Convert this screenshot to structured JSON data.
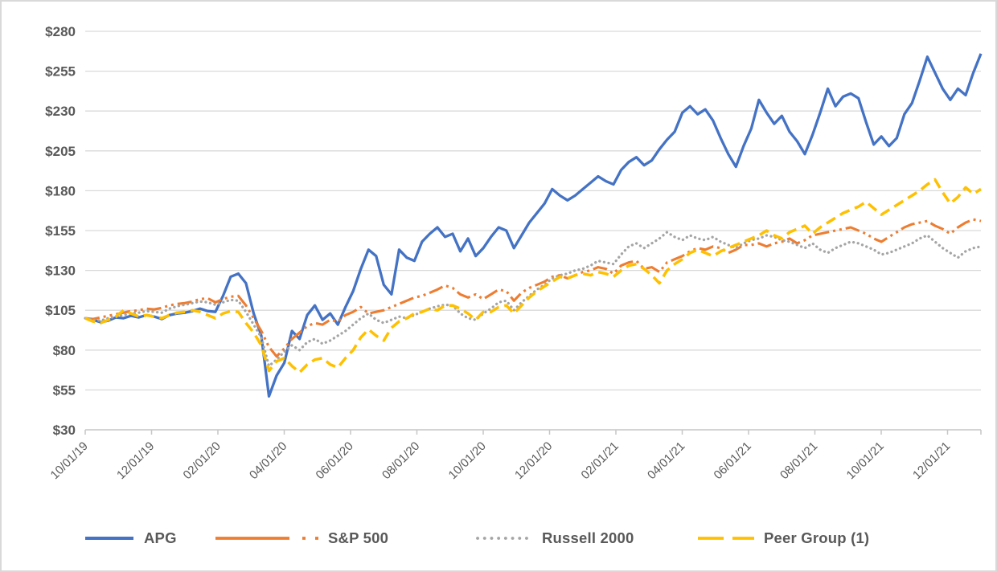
{
  "colors": {
    "apg_blue": "#4472C4",
    "sp500_orange": "#ED7D31",
    "russell_gray": "#A5A5A5",
    "peer_gold": "#FFC000",
    "axis_text": "#595959",
    "gridline": "#D9D9D9",
    "axis_line": "#C6C6C6",
    "frame_border": "#D9D9D9",
    "background": "#FFFFFF"
  },
  "chart_data": {
    "type": "line",
    "title": "",
    "grid": true,
    "legend_position": "bottom",
    "sampling": "weekly points from 10/01/19 through 12/31/21, values indexed to $100",
    "y_axis": {
      "min": 30,
      "max": 280,
      "tick_values": [
        30,
        55,
        80,
        105,
        130,
        155,
        180,
        205,
        230,
        255,
        280
      ],
      "tick_labels": [
        "$30",
        "$55",
        "$80",
        "$105",
        "$130",
        "$155",
        "$180",
        "$205",
        "$230",
        "$255",
        "$280"
      ]
    },
    "x_axis": {
      "tick_labels": [
        "10/01/19",
        "12/01/19",
        "02/01/20",
        "04/01/20",
        "06/01/20",
        "08/01/20",
        "10/01/20",
        "12/01/20",
        "02/01/21",
        "04/01/21",
        "06/01/21",
        "08/01/21",
        "10/01/21",
        "12/01/21"
      ]
    },
    "series": [
      {
        "name": "APG",
        "color": "#4472C4",
        "line_style": "solid",
        "values": [
          100,
          99,
          97.5,
          98.5,
          100.5,
          100,
          101.5,
          100.5,
          102,
          101,
          99.5,
          102,
          103,
          103.5,
          104.5,
          106,
          104.5,
          104,
          114,
          126,
          128,
          122,
          103,
          89,
          51,
          64,
          72,
          92,
          87,
          102,
          108,
          99,
          103,
          96,
          107,
          117,
          131,
          143,
          139,
          121,
          115,
          143,
          138,
          136,
          148,
          153,
          157,
          151,
          153,
          142,
          150,
          139,
          144,
          151,
          157,
          155,
          144,
          152,
          160,
          166,
          172,
          181,
          177,
          174,
          177,
          181,
          185,
          189,
          186,
          184,
          193,
          198,
          201,
          196,
          199,
          206,
          212,
          217,
          229,
          233,
          228,
          231,
          224,
          213,
          203,
          195,
          208,
          219,
          237,
          229,
          222,
          227,
          217,
          211,
          203,
          215,
          229,
          244,
          233,
          239,
          241,
          238,
          223,
          209,
          214,
          208,
          213,
          228,
          235,
          249,
          264,
          254,
          244,
          237,
          244,
          240,
          254,
          266
        ]
      },
      {
        "name": "S&P 500",
        "color": "#ED7D31",
        "line_style": "long-dash-dot-dot",
        "values": [
          100,
          99.5,
          100.5,
          101.5,
          102.5,
          103.5,
          104.5,
          105,
          106,
          105.5,
          106.5,
          108,
          109,
          109.5,
          110.5,
          112,
          112.5,
          110,
          112,
          113.5,
          114,
          108,
          100,
          92,
          82,
          76,
          81,
          87,
          91,
          95,
          97,
          96,
          99,
          98,
          102,
          104,
          107,
          103,
          104,
          105,
          107,
          109,
          111,
          113,
          114,
          116,
          118,
          120.5,
          119,
          115,
          113,
          115,
          112,
          115,
          118,
          117,
          111,
          116,
          119,
          121,
          123,
          126,
          127,
          125,
          127,
          129,
          130,
          132,
          131,
          128,
          133,
          135,
          136,
          131,
          132,
          129,
          135,
          137,
          139,
          142,
          144,
          143,
          145,
          144,
          141,
          143,
          146,
          146,
          147,
          145,
          147,
          148,
          150,
          147,
          149,
          152,
          153,
          154,
          155,
          156,
          157,
          155,
          153,
          150,
          148,
          151,
          154,
          157,
          159,
          160,
          161,
          158,
          156,
          153,
          157,
          160,
          162,
          161
        ]
      },
      {
        "name": "Russell 2000",
        "color": "#A5A5A5",
        "line_style": "dot",
        "values": [
          100,
          99,
          98.5,
          100,
          101,
          102,
          103,
          103.5,
          104.5,
          104,
          103.5,
          106,
          107.5,
          108.5,
          109.5,
          110.5,
          110,
          108.5,
          110,
          111.5,
          111,
          104,
          96,
          88,
          70,
          74,
          79,
          83,
          80,
          85,
          87,
          84,
          86,
          89,
          92,
          96,
          100,
          103,
          99,
          97,
          99,
          101,
          100,
          102,
          104,
          106,
          107.5,
          108.5,
          108,
          103,
          100,
          99,
          103,
          106,
          110,
          111,
          105,
          110,
          114,
          118,
          121,
          125,
          127,
          128,
          130,
          131,
          133,
          136,
          135,
          134,
          140,
          145,
          147,
          144,
          147,
          150,
          154,
          151,
          149,
          152,
          150,
          149,
          151,
          148,
          146,
          144,
          147,
          149,
          150,
          152,
          151,
          149,
          148,
          146,
          144,
          147,
          143,
          141,
          144,
          146,
          148,
          147,
          145,
          143,
          140,
          141,
          143,
          145,
          147,
          150,
          152,
          148,
          144,
          141,
          138,
          142,
          144,
          145
        ]
      },
      {
        "name": "Peer Group (1)",
        "color": "#FFC000",
        "line_style": "dash",
        "values": [
          100,
          98,
          97,
          99,
          101,
          105,
          103,
          101,
          102,
          101,
          100,
          102,
          103.5,
          104,
          105,
          104,
          102,
          100,
          103,
          104.5,
          104,
          97,
          91,
          83,
          67,
          73,
          75,
          70,
          66,
          71,
          74,
          75,
          71,
          69,
          75,
          80,
          88,
          93,
          89,
          86,
          94,
          98,
          100,
          103,
          104,
          106,
          105,
          108,
          108,
          106,
          103,
          99,
          104,
          104,
          107,
          108,
          103,
          108,
          113,
          117,
          120,
          123,
          126,
          125,
          127,
          128,
          127,
          129,
          128,
          126,
          130,
          133,
          134,
          131,
          127,
          122,
          130,
          134,
          137,
          141,
          143,
          141,
          139,
          142,
          144,
          146,
          148,
          150,
          152,
          155,
          152,
          150,
          154,
          156,
          158,
          153,
          157,
          160,
          163,
          166,
          168,
          170,
          173,
          169,
          165,
          168,
          171,
          174,
          177,
          180,
          184,
          187,
          179,
          172,
          176,
          182,
          178,
          181
        ]
      }
    ]
  }
}
